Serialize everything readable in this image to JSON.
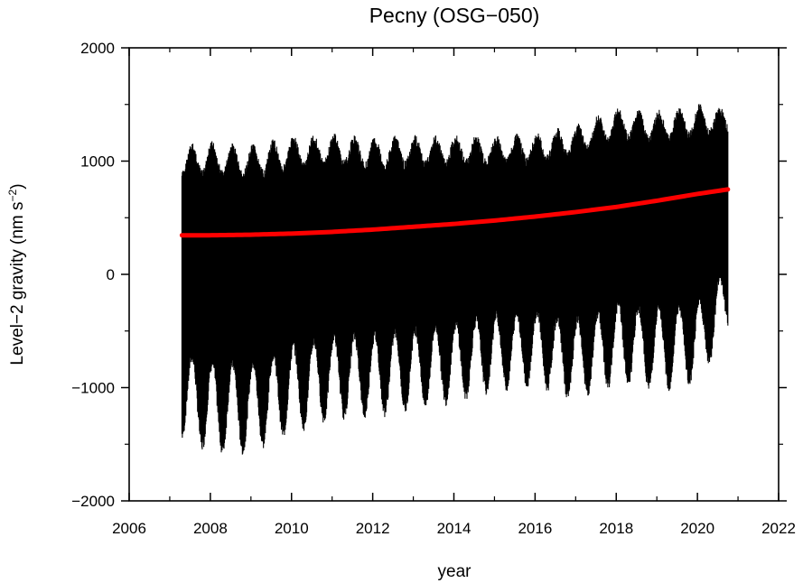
{
  "chart_data": {
    "type": "line",
    "title": "Pecny (OSG−050)",
    "xlabel": "year",
    "ylabel_main": "Level−2 gravity (nm s",
    "ylabel_sup": "−2",
    "ylabel_end": ")",
    "xlim": [
      2006,
      2022
    ],
    "ylim": [
      -2000,
      2000
    ],
    "x_ticks": [
      2006,
      2008,
      2010,
      2012,
      2014,
      2016,
      2018,
      2020,
      2022
    ],
    "x_tick_labels": [
      "2006",
      "2008",
      "2010",
      "2012",
      "2014",
      "2016",
      "2018",
      "2020",
      "2022"
    ],
    "y_ticks": [
      -2000,
      -1000,
      0,
      1000,
      2000
    ],
    "y_tick_labels": [
      "−2000",
      "−1000",
      "0",
      "1000",
      "2000"
    ],
    "grid": false,
    "series": [
      {
        "color": "#000000",
        "style": "dense oscillating band",
        "envelope": {
          "x": [
            2007.3,
            2008.0,
            2009.0,
            2010.0,
            2011.0,
            2012.0,
            2013.0,
            2014.0,
            2015.0,
            2016.0,
            2017.0,
            2018.0,
            2019.0,
            2020.0,
            2020.75
          ],
          "max": [
            1150,
            1180,
            1150,
            1230,
            1250,
            1220,
            1230,
            1240,
            1230,
            1250,
            1330,
            1480,
            1450,
            1510,
            1480
          ],
          "min": [
            -1470,
            -1600,
            -1600,
            -1420,
            -1300,
            -1280,
            -1220,
            -1150,
            -1050,
            -1000,
            -1150,
            -1000,
            -1050,
            -1000,
            -550
          ]
        }
      },
      {
        "color": "#ff0000",
        "style": "trend curve",
        "x": [
          2007.3,
          2008,
          2009,
          2010,
          2011,
          2012,
          2013,
          2014,
          2015,
          2016,
          2017,
          2018,
          2019,
          2020,
          2020.75
        ],
        "y": [
          345,
          345,
          350,
          360,
          375,
          395,
          420,
          445,
          475,
          510,
          550,
          595,
          650,
          710,
          750
        ]
      }
    ]
  }
}
